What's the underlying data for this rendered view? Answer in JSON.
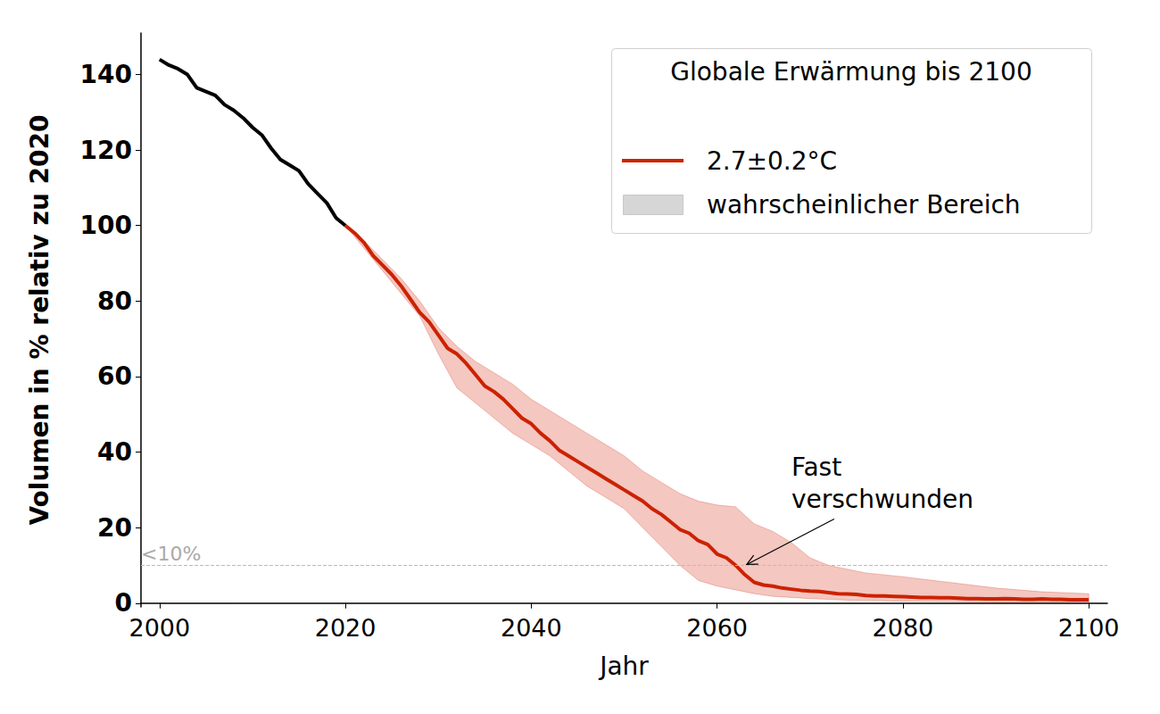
{
  "chart_data": {
    "type": "line",
    "xlabel": "Jahr",
    "ylabel": "Volumen in % relativ zu 2020",
    "legend_title": "Globale Erwärmung bis 2100",
    "legend": "upper right",
    "grid": false,
    "xlim": [
      1998,
      2102
    ],
    "xticks": [
      2000,
      2020,
      2040,
      2060,
      2080,
      2100
    ],
    "ylim": [
      -1,
      151
    ],
    "yticks": [
      0,
      20,
      40,
      60,
      80,
      100,
      120,
      140
    ],
    "series": [
      {
        "color": "#000000",
        "x": [
          2000,
          2001,
          2002,
          2003,
          2004,
          2005,
          2006,
          2007,
          2008,
          2009,
          2010,
          2011,
          2012,
          2013,
          2014,
          2015,
          2016,
          2017,
          2018,
          2019,
          2020
        ],
        "values": [
          144,
          142.5,
          141.5,
          140,
          136.5,
          135.5,
          134.5,
          132,
          130.5,
          128.5,
          126,
          124,
          120.5,
          117.5,
          116,
          114.5,
          111,
          108.5,
          106,
          102,
          100
        ]
      },
      {
        "name": "2.7±0.2°C",
        "color": "#cc2200",
        "x": [
          2020,
          2021,
          2022,
          2023,
          2024,
          2025,
          2026,
          2027,
          2028,
          2029,
          2030,
          2031,
          2032,
          2033,
          2034,
          2035,
          2036,
          2037,
          2038,
          2039,
          2040,
          2041,
          2042,
          2043,
          2044,
          2045,
          2046,
          2047,
          2048,
          2049,
          2050,
          2051,
          2052,
          2053,
          2054,
          2055,
          2056,
          2057,
          2058,
          2059,
          2060,
          2061,
          2062,
          2063,
          2064,
          2065,
          2066,
          2067,
          2068,
          2069,
          2070,
          2071,
          2072,
          2073,
          2074,
          2075,
          2076,
          2077,
          2078,
          2079,
          2080,
          2081,
          2082,
          2083,
          2084,
          2085,
          2086,
          2087,
          2088,
          2089,
          2090,
          2091,
          2092,
          2093,
          2094,
          2095,
          2096,
          2097,
          2098,
          2099,
          2100
        ],
        "values": [
          100,
          98,
          95.5,
          92,
          89.5,
          87,
          84,
          80.5,
          77,
          74.5,
          71,
          67.5,
          66,
          63.5,
          60.5,
          57.5,
          56,
          54,
          51.5,
          49,
          47.5,
          45,
          43,
          40.5,
          39,
          37.5,
          36,
          34.5,
          33,
          31.5,
          30,
          28.5,
          27,
          25,
          23.5,
          21.5,
          19.5,
          18.5,
          16.5,
          15.5,
          13,
          12,
          10,
          7.5,
          5.5,
          4.8,
          4.5,
          4,
          3.7,
          3.4,
          3.2,
          3.1,
          2.8,
          2.5,
          2.4,
          2.3,
          2,
          1.9,
          1.9,
          1.8,
          1.7,
          1.6,
          1.5,
          1.5,
          1.4,
          1.4,
          1.3,
          1.2,
          1.2,
          1.1,
          1.1,
          1.2,
          1.1,
          1,
          1,
          1.1,
          1,
          1,
          0.9,
          0.9,
          0.9
        ]
      }
    ],
    "band": {
      "name": "wahrscheinlicher Bereich",
      "color": "#f4c7c1",
      "x": [
        2020,
        2022,
        2024,
        2026,
        2028,
        2030,
        2032,
        2034,
        2036,
        2038,
        2040,
        2042,
        2044,
        2046,
        2048,
        2050,
        2052,
        2054,
        2056,
        2058,
        2060,
        2062,
        2064,
        2066,
        2068,
        2070,
        2072,
        2074,
        2076,
        2080,
        2085,
        2090,
        2095,
        2100
      ],
      "lower": [
        100,
        94,
        88,
        82,
        76,
        66,
        57,
        53,
        49,
        45,
        42,
        39,
        35,
        31,
        28,
        25,
        20,
        15,
        10,
        6,
        4.5,
        3.5,
        2.5,
        1.8,
        1.5,
        1.2,
        1,
        0.8,
        0.7,
        0.5,
        0.4,
        0.3,
        0.3,
        0.2
      ],
      "upper": [
        100,
        96,
        91,
        86,
        80,
        73,
        68,
        64,
        61,
        58,
        54,
        51,
        48,
        45,
        42,
        39,
        35,
        32,
        29,
        27,
        26,
        25.5,
        21,
        19,
        16,
        12,
        10,
        9,
        8,
        7,
        5.5,
        4,
        3,
        2.5
      ]
    },
    "threshold": {
      "value": 10,
      "label": "<10%"
    },
    "annotation": {
      "text": "Fast\nverschwunden",
      "x": 2063,
      "y": 10
    }
  }
}
